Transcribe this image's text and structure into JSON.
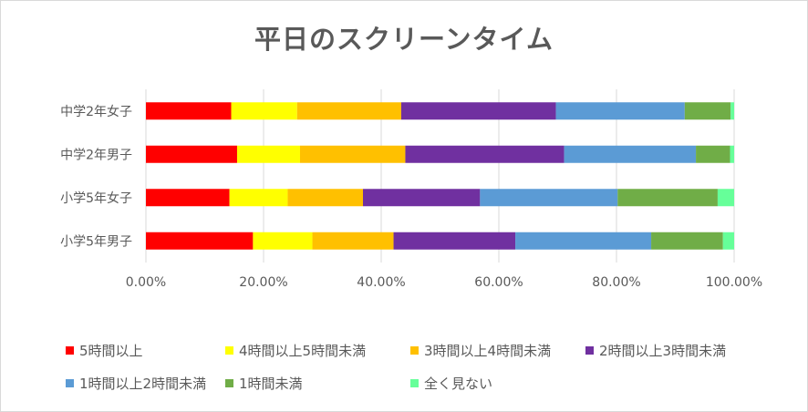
{
  "chart_data": {
    "type": "bar",
    "orientation": "horizontal",
    "stacked": true,
    "title": "平日のスクリーンタイム",
    "categories": [
      "中学2年女子",
      "中学2年男子",
      "小学5年女子",
      "小学5年男子"
    ],
    "series": [
      {
        "name": "5時間以上",
        "color": "#ff0000",
        "values": [
          14.5,
          15.5,
          14.2,
          18.2
        ]
      },
      {
        "name": "4時間以上5時間未満",
        "color": "#ffff00",
        "values": [
          11.2,
          10.7,
          9.9,
          10.1
        ]
      },
      {
        "name": "3時間以上4時間未満",
        "color": "#ffc000",
        "values": [
          17.7,
          17.9,
          12.8,
          13.8
        ]
      },
      {
        "name": "2時間以上3時間未満",
        "color": "#7030a0",
        "values": [
          26.3,
          27.0,
          19.9,
          20.7
        ]
      },
      {
        "name": "1時間以上2時間未満",
        "color": "#5b9bd5",
        "values": [
          21.9,
          22.4,
          23.4,
          23.1
        ]
      },
      {
        "name": "1時間未満",
        "color": "#70ad47",
        "values": [
          7.8,
          5.8,
          17.0,
          12.2
        ]
      },
      {
        "name": "全く見ない",
        "color": "#66ff99",
        "values": [
          0.6,
          0.7,
          2.8,
          1.9
        ]
      }
    ],
    "xlim": [
      0,
      100
    ],
    "xticks": [
      "0.00%",
      "20.00%",
      "40.00%",
      "60.00%",
      "80.00%",
      "100.00%"
    ],
    "grid": true,
    "legend_position": "bottom"
  }
}
